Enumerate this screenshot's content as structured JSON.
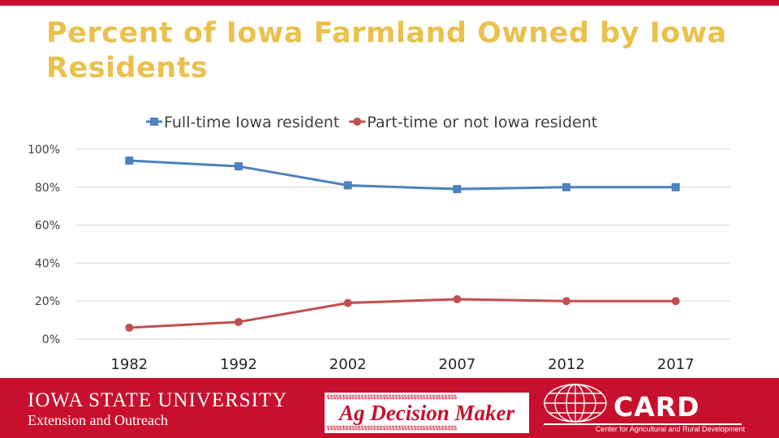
{
  "slide": {
    "title": "Percent of Iowa Farmland Owned by Iowa Residents"
  },
  "colors": {
    "title": "#eac14d",
    "series_full": "#4f81bd",
    "series_part": "#c0504d",
    "gridline": "#d9d9d9",
    "footer_bg": "#c8102e"
  },
  "chart_data": {
    "type": "line",
    "categories": [
      "1982",
      "1992",
      "2002",
      "2007",
      "2012",
      "2017"
    ],
    "series": [
      {
        "name": "Full-time Iowa resident",
        "marker": "square",
        "values": [
          94,
          91,
          81,
          79,
          80,
          80
        ]
      },
      {
        "name": "Part-time or not Iowa resident",
        "marker": "circle",
        "values": [
          6,
          9,
          19,
          21,
          20,
          20
        ]
      }
    ],
    "yticks": [
      "0%",
      "20%",
      "40%",
      "60%",
      "80%",
      "100%"
    ],
    "ylim": [
      0,
      100
    ],
    "grid": true,
    "legend": "top-center",
    "xlabel": "",
    "ylabel": ""
  },
  "footer": {
    "isu_name": "IOWA STATE UNIVERSITY",
    "isu_sub": "Extension and Outreach",
    "adm_dollars": "$$$$$$$$$$$$$$$$$$$$$$$$$$$$$$$$$$$$$$$$$$",
    "adm_brand": "Ag Decision Maker",
    "card_name": "CARD",
    "card_sub": "Center for Agricultural and Rural Development"
  }
}
